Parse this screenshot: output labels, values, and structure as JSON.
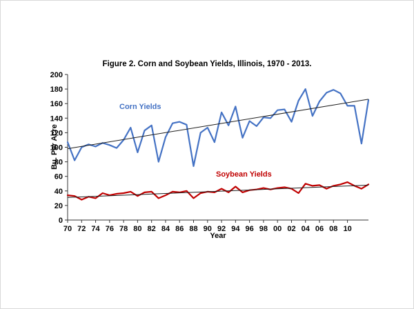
{
  "figure": {
    "title": "Figure 2. Corn and Soybean Yields, Illinois, 1970 - 2013.",
    "y_axis_label": "Bu. Per Acre",
    "x_axis_label": "Year",
    "corn_label": "Corn Yields",
    "soybean_label": "Soybean Yields"
  },
  "chart_data": {
    "type": "line",
    "title": "Figure 2. Corn and Soybean Yields, Illinois, 1970 - 2013.",
    "xlabel": "Year",
    "ylabel": "Bu. Per Acre",
    "ylim": [
      0,
      200
    ],
    "y_ticks": [
      0,
      20,
      40,
      60,
      80,
      100,
      120,
      140,
      160,
      180,
      200
    ],
    "x": [
      1970,
      1971,
      1972,
      1973,
      1974,
      1975,
      1976,
      1977,
      1978,
      1979,
      1980,
      1981,
      1982,
      1983,
      1984,
      1985,
      1986,
      1987,
      1988,
      1989,
      1990,
      1991,
      1992,
      1993,
      1994,
      1995,
      1996,
      1997,
      1998,
      1999,
      2000,
      2001,
      2002,
      2003,
      2004,
      2005,
      2006,
      2007,
      2008,
      2009,
      2010,
      2011,
      2012,
      2013
    ],
    "x_tick_years": [
      1970,
      1972,
      1974,
      1976,
      1978,
      1980,
      1982,
      1984,
      1986,
      1988,
      1990,
      1992,
      1994,
      1996,
      1998,
      2000,
      2002,
      2004,
      2006,
      2008,
      2010
    ],
    "x_tick_labels": [
      "70",
      "72",
      "74",
      "76",
      "78",
      "80",
      "82",
      "84",
      "86",
      "88",
      "90",
      "92",
      "94",
      "96",
      "98",
      "00",
      "02",
      "04",
      "06",
      "08",
      "10"
    ],
    "grid": false,
    "legend": "inline-labels",
    "series": [
      {
        "name": "Corn Yields",
        "color": "#4472c4",
        "values": [
          107,
          82,
          100,
          104,
          101,
          106,
          103,
          99,
          110,
          127,
          93,
          123,
          130,
          80,
          114,
          133,
          135,
          131,
          74,
          120,
          127,
          107,
          148,
          130,
          156,
          113,
          136,
          129,
          141,
          140,
          151,
          152,
          135,
          164,
          180,
          143,
          163,
          175,
          179,
          174,
          157,
          157,
          105,
          165
        ]
      },
      {
        "name": "Soybean Yields",
        "color": "#c00000",
        "values": [
          34,
          33,
          28,
          32,
          30,
          37,
          34,
          36,
          37,
          39,
          33,
          38,
          39,
          30,
          34,
          39,
          38,
          40,
          30,
          37,
          39,
          38,
          43,
          38,
          46,
          38,
          41,
          42,
          44,
          42,
          44,
          45,
          43,
          37,
          50,
          47,
          48,
          43,
          47,
          49,
          52,
          47,
          43,
          49
        ]
      }
    ],
    "trend_lines": [
      {
        "name": "corn-trend",
        "series": "Corn Yields",
        "start": 98,
        "end": 166,
        "color": "#1a1a1a"
      },
      {
        "name": "soybean-trend",
        "series": "Soybean Yields",
        "start": 31,
        "end": 48,
        "color": "#1a1a1a"
      }
    ],
    "axis_color": "#333333"
  }
}
